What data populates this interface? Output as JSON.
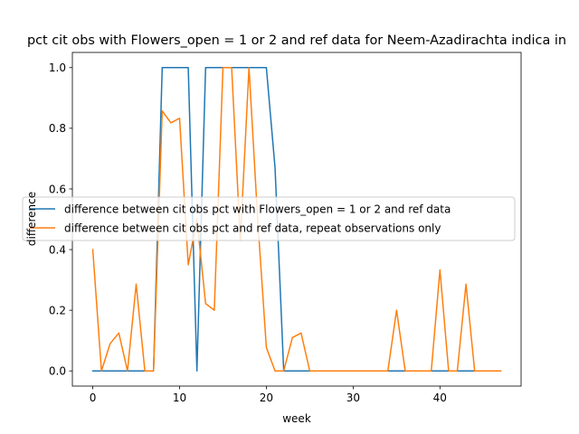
{
  "chart_data": {
    "type": "line",
    "title": "pct cit obs with Flowers_open = 1 or 2 and ref data for Neem-Azadirachta indica in",
    "xlabel": "week",
    "ylabel": "difference",
    "xlim": [
      -2.35,
      49.35
    ],
    "ylim": [
      -0.05,
      1.05
    ],
    "xticks": [
      0,
      10,
      20,
      30,
      40
    ],
    "yticks": [
      0.0,
      0.2,
      0.4,
      0.6,
      0.8,
      1.0
    ],
    "grid": false,
    "legend_position": "center-left",
    "series": [
      {
        "name": "difference between cit obs pct with Flowers_open = 1 or 2 and ref data",
        "color": "#1f77b4",
        "x": [
          0,
          1,
          2,
          3,
          4,
          5,
          6,
          7,
          8,
          9,
          10,
          11,
          12,
          13,
          14,
          15,
          16,
          17,
          18,
          19,
          20,
          21,
          22,
          23,
          24,
          25,
          26,
          27,
          28,
          29,
          30,
          31,
          32,
          33,
          34,
          35,
          36,
          37,
          38,
          39,
          40,
          41,
          42,
          43,
          44,
          45,
          46,
          47
        ],
        "y": [
          0,
          0,
          0,
          0,
          0,
          0,
          0,
          0,
          1,
          1,
          1,
          1,
          0,
          1,
          1,
          1,
          1,
          1,
          1,
          1,
          1,
          0.67,
          0,
          0,
          0,
          0,
          0,
          0,
          0,
          0,
          0,
          0,
          0,
          0,
          0,
          0,
          0,
          0,
          0,
          0,
          0,
          0,
          0,
          0,
          0,
          0,
          0,
          0
        ]
      },
      {
        "name": "difference between cit obs pct and ref data, repeat observations only",
        "color": "#ff7f0e",
        "x": [
          0,
          1,
          2,
          3,
          4,
          5,
          6,
          7,
          8,
          9,
          10,
          11,
          12,
          13,
          14,
          15,
          16,
          17,
          18,
          19,
          20,
          21,
          22,
          23,
          24,
          25,
          26,
          27,
          28,
          29,
          30,
          31,
          32,
          33,
          34,
          35,
          36,
          37,
          38,
          39,
          40,
          41,
          42,
          43,
          44,
          45,
          46,
          47
        ],
        "y": [
          0.4,
          0,
          0.09,
          0.125,
          0,
          0.286,
          0,
          0,
          0.857,
          0.818,
          0.833,
          0.35,
          0.5,
          0.222,
          0.2,
          1,
          1,
          0.43,
          1,
          0.5,
          0.077,
          0,
          0,
          0.11,
          0.125,
          0,
          0,
          0,
          0,
          0,
          0,
          0,
          0,
          0,
          0,
          0.2,
          0,
          0,
          0,
          0,
          0.333,
          0,
          0,
          0.286,
          0,
          0,
          0,
          0
        ]
      }
    ]
  }
}
